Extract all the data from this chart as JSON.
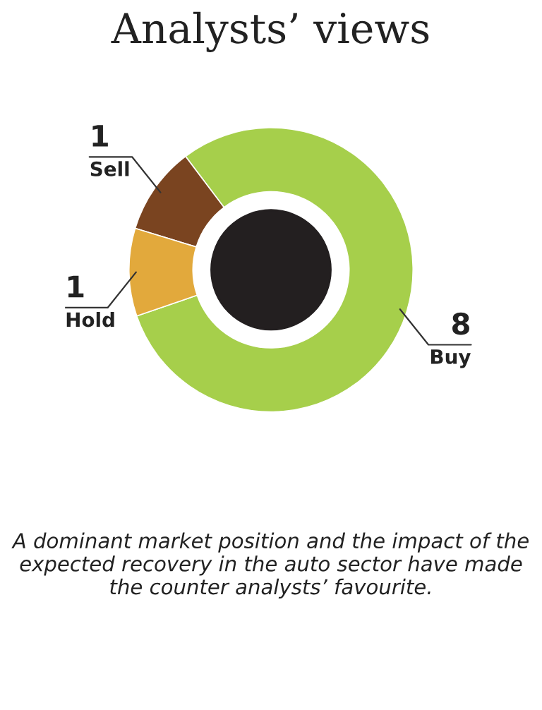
{
  "chart_data": {
    "type": "donut",
    "title": "Analysts’ views",
    "categories": [
      "Buy",
      "Sell",
      "Hold"
    ],
    "values": [
      8,
      1,
      1
    ],
    "colors": [
      "#a6cf4b",
      "#7a4420",
      "#e2a93c"
    ],
    "data_labels": true,
    "annotations": [
      "A dominant market position and the impact of the expected recovery in the auto sector have made the counter analysts’ favourite."
    ]
  }
}
